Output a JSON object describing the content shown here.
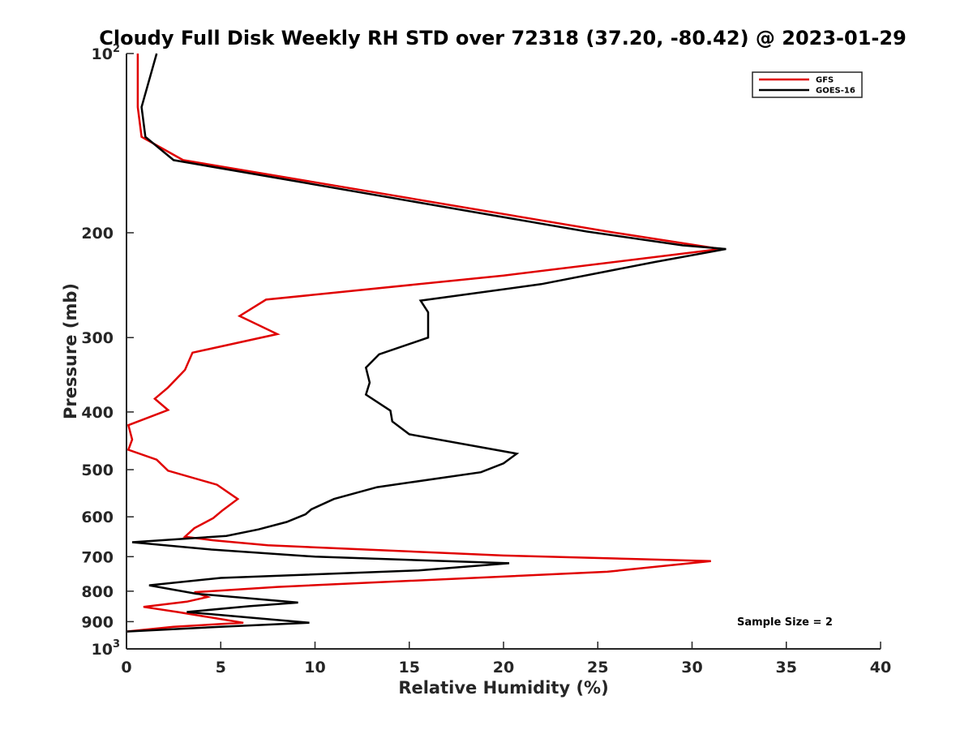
{
  "chart_data": {
    "type": "line",
    "title": "Cloudy Full Disk Weekly RH STD over 72318 (37.20, -80.42) @ 2023-01-29",
    "xlabel": "Relative Humidity (%)",
    "ylabel": "Pressure (mb)",
    "xlim": [
      0,
      40
    ],
    "ylim": [
      100,
      1000
    ],
    "yscale": "log",
    "y_reversed": true,
    "legend_position": "top-right",
    "x_ticks": [
      {
        "value": 0,
        "label": "0"
      },
      {
        "value": 5,
        "label": "5"
      },
      {
        "value": 10,
        "label": "10"
      },
      {
        "value": 15,
        "label": "15"
      },
      {
        "value": 20,
        "label": "20"
      },
      {
        "value": 25,
        "label": "25"
      },
      {
        "value": 30,
        "label": "30"
      },
      {
        "value": 35,
        "label": "35"
      },
      {
        "value": 40,
        "label": "40"
      }
    ],
    "y_ticks": [
      {
        "value": 100,
        "base": "10",
        "exp": "2"
      },
      {
        "value": 200,
        "label": "200"
      },
      {
        "value": 300,
        "label": "300"
      },
      {
        "value": 400,
        "label": "400"
      },
      {
        "value": 500,
        "label": "500"
      },
      {
        "value": 600,
        "label": "600"
      },
      {
        "value": 700,
        "label": "700"
      },
      {
        "value": 800,
        "label": "800"
      },
      {
        "value": 900,
        "label": "900"
      },
      {
        "value": 1000,
        "base": "10",
        "exp": "3"
      }
    ],
    "series": [
      {
        "name": "GFS",
        "color": "#e00000",
        "points": [
          [
            0.6,
            100
          ],
          [
            0.6,
            123
          ],
          [
            0.8,
            138
          ],
          [
            3.0,
            151
          ],
          [
            25.5,
            199
          ],
          [
            31.5,
            213
          ],
          [
            20.0,
            236
          ],
          [
            7.4,
            259
          ],
          [
            6.0,
            276
          ],
          [
            8.0,
            296
          ],
          [
            3.5,
            318
          ],
          [
            3.1,
            340
          ],
          [
            2.2,
            364
          ],
          [
            1.5,
            380
          ],
          [
            2.2,
            397
          ],
          [
            0.1,
            421
          ],
          [
            0.3,
            445
          ],
          [
            0.1,
            463
          ],
          [
            1.6,
            481
          ],
          [
            2.2,
            502
          ],
          [
            4.8,
            530
          ],
          [
            5.9,
            560
          ],
          [
            5.1,
            585
          ],
          [
            4.6,
            603
          ],
          [
            3.6,
            627
          ],
          [
            3.1,
            648
          ],
          [
            4.6,
            657
          ],
          [
            7.5,
            670
          ],
          [
            20.0,
            697
          ],
          [
            31.0,
            712
          ],
          [
            25.5,
            742
          ],
          [
            8.0,
            787
          ],
          [
            3.6,
            803
          ],
          [
            4.3,
            818
          ],
          [
            3.2,
            833
          ],
          [
            0.9,
            850
          ],
          [
            2.7,
            867
          ],
          [
            6.2,
            904
          ],
          [
            2.5,
            918
          ],
          [
            0.0,
            935
          ]
        ]
      },
      {
        "name": "GOES-16",
        "color": "#000000",
        "points": [
          [
            1.6,
            100
          ],
          [
            0.8,
            123
          ],
          [
            1.0,
            138
          ],
          [
            2.5,
            151
          ],
          [
            24.4,
            199
          ],
          [
            29.5,
            210
          ],
          [
            31.8,
            213
          ],
          [
            28.0,
            224
          ],
          [
            22.0,
            244
          ],
          [
            15.6,
            260
          ],
          [
            16.0,
            272
          ],
          [
            16.0,
            300
          ],
          [
            13.4,
            320
          ],
          [
            12.7,
            337
          ],
          [
            12.9,
            357
          ],
          [
            12.7,
            374
          ],
          [
            14.0,
            398
          ],
          [
            14.1,
            415
          ],
          [
            15.0,
            436
          ],
          [
            20.7,
            470
          ],
          [
            20.0,
            488
          ],
          [
            18.8,
            505
          ],
          [
            13.3,
            535
          ],
          [
            11.0,
            560
          ],
          [
            9.8,
            583
          ],
          [
            9.5,
            594
          ],
          [
            8.5,
            612
          ],
          [
            7.0,
            630
          ],
          [
            5.3,
            646
          ],
          [
            0.3,
            662
          ],
          [
            4.5,
            681
          ],
          [
            10.0,
            700
          ],
          [
            20.3,
            718
          ],
          [
            15.5,
            738
          ],
          [
            5.0,
            760
          ],
          [
            1.2,
            782
          ],
          [
            3.7,
            808
          ],
          [
            9.1,
            836
          ],
          [
            6.5,
            848
          ],
          [
            3.2,
            867
          ],
          [
            5.5,
            880
          ],
          [
            9.7,
            904
          ],
          [
            5.0,
            918
          ],
          [
            0.0,
            935
          ]
        ]
      }
    ],
    "annotations": [
      "Sample Size = 2"
    ]
  }
}
